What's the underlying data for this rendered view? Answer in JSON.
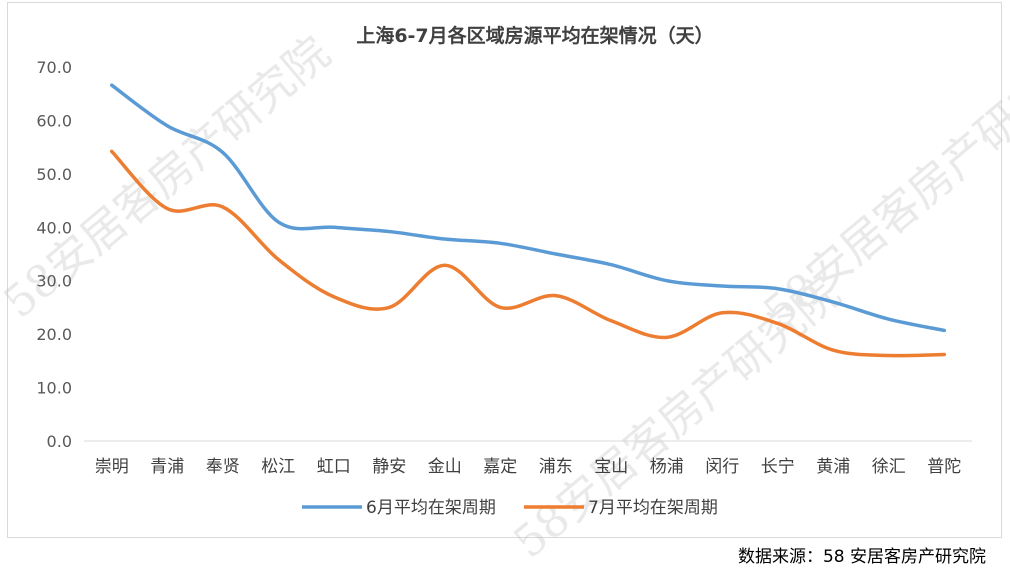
{
  "chart_data": {
    "type": "line",
    "title": "上海6-7月各区域房源平均在架情况（天）",
    "categories": [
      "崇明",
      "青浦",
      "奉贤",
      "松江",
      "虹口",
      "静安",
      "金山",
      "嘉定",
      "浦东",
      "宝山",
      "杨浦",
      "闵行",
      "长宁",
      "黄浦",
      "徐汇",
      "普陀"
    ],
    "ylim": [
      0,
      70
    ],
    "yticks": [
      "0.0",
      "10.0",
      "20.0",
      "30.0",
      "40.0",
      "50.0",
      "60.0",
      "70.0"
    ],
    "grid": false,
    "legend_position": "bottom",
    "series": [
      {
        "name": "6月平均在架周期",
        "color": "#5b9bd5",
        "values": [
          66.6,
          59.0,
          54.0,
          41.0,
          40.0,
          39.2,
          37.8,
          37.0,
          35.0,
          33.0,
          30.0,
          29.0,
          28.5,
          26.0,
          22.8,
          20.7
        ]
      },
      {
        "name": "7月平均在架周期",
        "color": "#ed7d31",
        "values": [
          54.2,
          43.5,
          43.8,
          34.0,
          27.0,
          25.0,
          32.9,
          25.0,
          27.2,
          22.5,
          19.4,
          24.0,
          22.0,
          17.0,
          16.0,
          16.2
        ]
      }
    ]
  },
  "watermark": "58安居客房产研究院",
  "source": "数据来源：58 安居客房产研究院"
}
